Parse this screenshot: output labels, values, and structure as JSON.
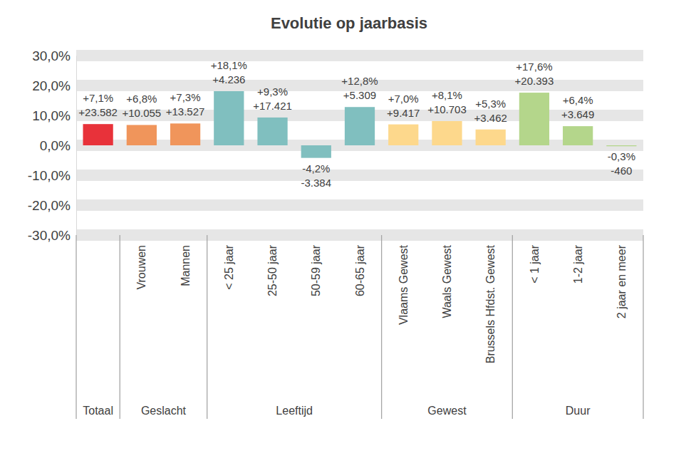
{
  "chart_data": {
    "type": "bar",
    "title": "Evolutie op jaarbasis",
    "categories": [
      null,
      "Vrouwen",
      "Mannen",
      "< 25 jaar",
      "25-50 jaar",
      "50-59 jaar",
      "60-65 jaar",
      "Vlaams Gewest",
      "Waals Gewest",
      "Brussels Hfdst. Gewest",
      "< 1 jaar",
      "1-2 jaar",
      "2 jaar en meer"
    ],
    "category_groups": [
      {
        "name": "Totaal",
        "size": 1
      },
      {
        "name": "Geslacht",
        "size": 2
      },
      {
        "name": "Leeftijd",
        "size": 4
      },
      {
        "name": "Gewest",
        "size": 3
      },
      {
        "name": "Duur",
        "size": 3
      }
    ],
    "values": [
      7.1,
      6.8,
      7.3,
      18.1,
      9.3,
      -4.2,
      12.8,
      7.0,
      8.1,
      5.3,
      17.6,
      6.4,
      -0.3
    ],
    "value_labels": [
      "+7,1%",
      "+6,8%",
      "+7,3%",
      "+18,1%",
      "+9,3%",
      "-4,2%",
      "+12,8%",
      "+7,0%",
      "+8,1%",
      "+5,3%",
      "+17,6%",
      "+6,4%",
      "-0,3%"
    ],
    "changes": [
      23582,
      10055,
      13527,
      4236,
      17421,
      -3384,
      5309,
      9417,
      10703,
      3462,
      20393,
      3649,
      -460
    ],
    "change_labels": [
      "+23.582",
      "+10.055",
      "+13.527",
      "+4.236",
      "+17.421",
      "-3.384",
      "+5.309",
      "+9.417",
      "+10.703",
      "+3.462",
      "+20.393",
      "+3.649",
      "-460"
    ],
    "colors": [
      "#e8323a",
      "#f0955b",
      "#f0955b",
      "#80bfbf",
      "#80bfbf",
      "#80bfbf",
      "#80bfbf",
      "#fdd88c",
      "#fdd88c",
      "#fdd88c",
      "#b4d68b",
      "#b4d68b",
      "#b4d68b"
    ],
    "ylim": [
      -30,
      30
    ],
    "yticks": [
      {
        "value": -30,
        "label": "-30,0%"
      },
      {
        "value": -20,
        "label": "-20,0%"
      },
      {
        "value": -10,
        "label": "-10,0%"
      },
      {
        "value": 0,
        "label": "0,0%"
      },
      {
        "value": 10,
        "label": "10,0%"
      },
      {
        "value": 20,
        "label": "20,0%"
      },
      {
        "value": 30,
        "label": "30,0%"
      }
    ],
    "grid": true,
    "data_labels": true
  }
}
